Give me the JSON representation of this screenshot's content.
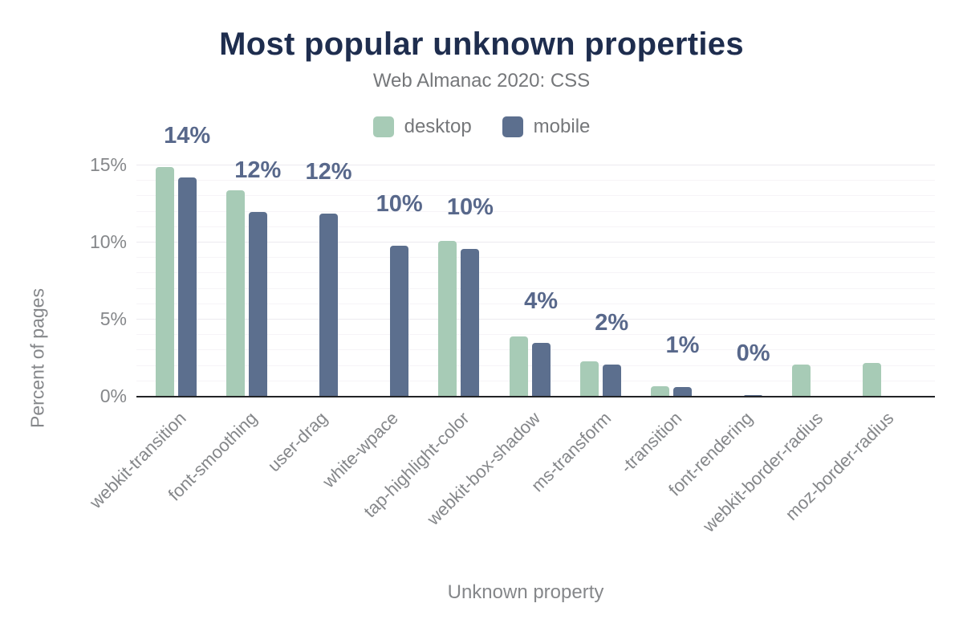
{
  "title": "Most popular unknown properties",
  "subtitle": "Web Almanac 2020: CSS",
  "legend": [
    {
      "label": "desktop",
      "color": "#a7cbb6"
    },
    {
      "label": "mobile",
      "color": "#5c6f8e"
    }
  ],
  "colors": {
    "title_text": "#1e2d4e",
    "muted_text": "#75777a",
    "axis_text": "#85878a",
    "value_label_text": "#58688b",
    "desktop_bar": "#a7cbb6",
    "mobile_bar": "#5c6f8e",
    "axis_line": "#222326",
    "gridline_major": "#eceaef",
    "gridline_minor": "#f6f4f7"
  },
  "chart_data": {
    "type": "bar",
    "title": "Most popular unknown properties",
    "subtitle": "Web Almanac 2020: CSS",
    "xlabel": "Unknown property",
    "ylabel": "Percent of pages",
    "ylim": [
      0,
      15
    ],
    "y_ticks": [
      "0%",
      "5%",
      "10%",
      "15%"
    ],
    "grid": "horizontal major every 5%, minor every 1%",
    "legend_position": "top-center",
    "categories": [
      "webkit-transition",
      "font-smoothing",
      "user-drag",
      "white-wpace",
      "tap-highlight-color",
      "webkit-box-shadow",
      "ms-transform",
      "-transition",
      "font-rendering",
      "webkit-border-radius",
      "moz-border-radius"
    ],
    "series": [
      {
        "name": "desktop",
        "color": "#a7cbb6",
        "values": [
          14.9,
          13.4,
          null,
          null,
          10.1,
          3.9,
          2.3,
          0.7,
          null,
          2.1,
          2.2
        ]
      },
      {
        "name": "mobile",
        "color": "#5c6f8e",
        "values": [
          14.2,
          12.0,
          11.9,
          9.8,
          9.6,
          3.5,
          2.1,
          0.6,
          0.1,
          null,
          null
        ]
      }
    ],
    "bar_labels": [
      "14%",
      "12%",
      "12%",
      "10%",
      "10%",
      "4%",
      "2%",
      "1%",
      "0%",
      null,
      null
    ]
  }
}
